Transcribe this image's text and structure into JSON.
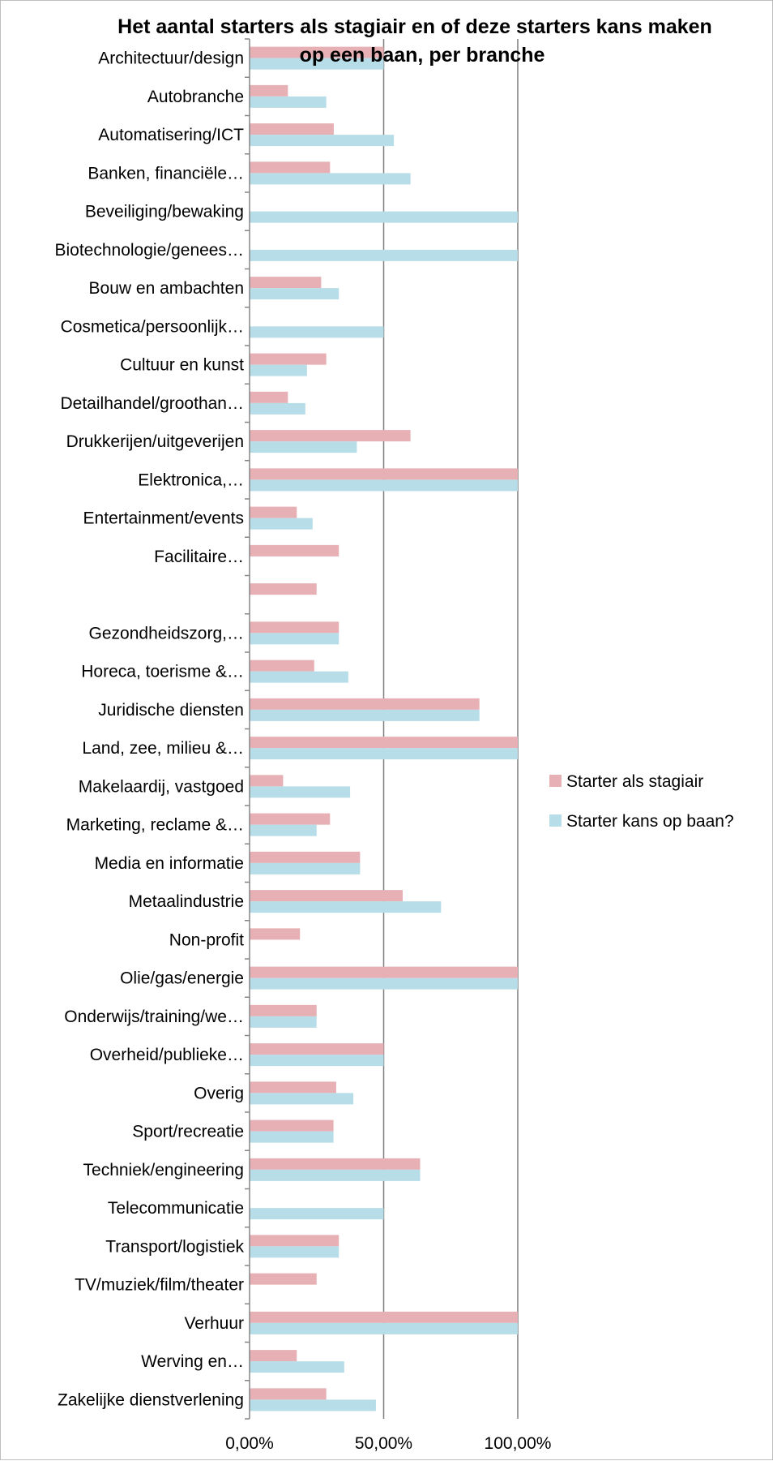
{
  "chart_data": {
    "type": "bar",
    "orientation": "horizontal",
    "title_lines": [
      "Het aantal starters als stagiair en of deze starters kans maken",
      "op een baan, per branche"
    ],
    "categories": [
      "Architectuur/design",
      "Autobranche",
      "Automatisering/ICT",
      "Banken, financiële…",
      "Beveiliging/bewaking",
      "Biotechnologie/genees…",
      "Bouw en ambachten",
      "Cosmetica/persoonlijk…",
      "Cultuur en kunst",
      "Detailhandel/groothan…",
      "Drukkerijen/uitgeverijen",
      "Elektronica,…",
      "Entertainment/events",
      "Facilitaire…",
      "",
      "Gezondheidszorg,…",
      "Horeca, toerisme &…",
      "Juridische diensten",
      "Land, zee, milieu &…",
      "Makelaardij, vastgoed",
      "Marketing, reclame &…",
      "Media en informatie",
      "Metaalindustrie",
      "Non-profit",
      "Olie/gas/energie",
      "Onderwijs/training/we…",
      "Overheid/publieke…",
      "Overig",
      "Sport/recreatie",
      "Techniek/engineering",
      "Telecommunicatie",
      "Transport/logistiek",
      "TV/muziek/film/theater",
      "Verhuur",
      "Werving en…",
      "Zakelijke dienstverlening"
    ],
    "series": [
      {
        "name": "Starter als stagiair",
        "color": "#E6B0B4",
        "values": [
          50,
          14.3,
          31.4,
          30,
          0,
          0,
          26.7,
          0,
          28.6,
          14.3,
          60,
          100,
          17.6,
          33.3,
          25,
          33.3,
          24.1,
          85.7,
          100,
          12.5,
          30,
          41.2,
          57.1,
          18.8,
          100,
          25,
          50,
          32.3,
          31.3,
          63.6,
          0,
          33.3,
          25,
          100,
          17.6,
          28.6
        ]
      },
      {
        "name": "Starter kans op baan?",
        "color": "#B7DDE8",
        "values": [
          50,
          28.6,
          53.8,
          60,
          100,
          100,
          33.3,
          50,
          21.4,
          20.8,
          40,
          100,
          23.5,
          0,
          0,
          33.3,
          36.8,
          85.7,
          100,
          37.5,
          25,
          41.2,
          71.4,
          0,
          100,
          25,
          50,
          38.7,
          31.3,
          63.6,
          50,
          33.3,
          0,
          100,
          35.3,
          47.1
        ]
      }
    ],
    "xlim": [
      0,
      100
    ],
    "xticks": [
      0,
      50,
      100
    ],
    "xtick_labels": [
      "0,00%",
      "50,00%",
      "100,00%"
    ],
    "xlabel": "",
    "ylabel": "",
    "grid": "vertical major gridlines",
    "legend_position": "right",
    "gridline_color": "#7f7f7f"
  }
}
